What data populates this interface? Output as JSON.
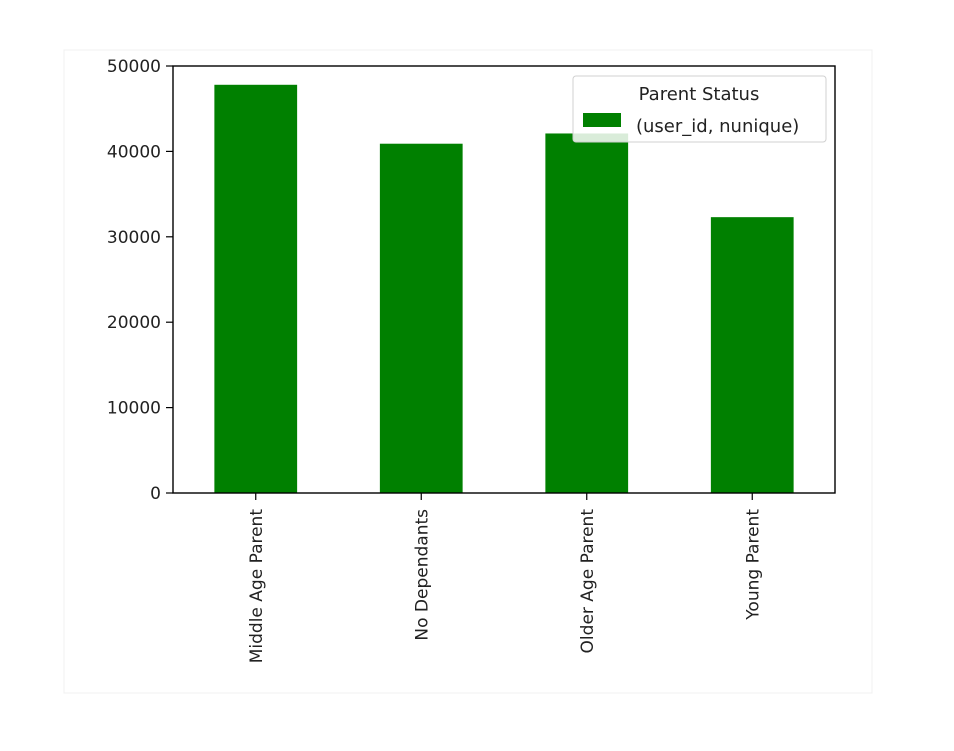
{
  "chart_data": {
    "type": "bar",
    "categories": [
      "Middle Age Parent",
      "No Dependants",
      "Older Age Parent",
      "Young Parent"
    ],
    "series": [
      {
        "name": "(user_id, nunique)",
        "values": [
          47800,
          40900,
          42100,
          32300
        ]
      }
    ],
    "title": "",
    "xlabel": "",
    "ylabel": "",
    "ylim": [
      0,
      50000
    ],
    "yticks": [
      0,
      10000,
      20000,
      30000,
      40000,
      50000
    ],
    "legend": {
      "title": "Parent Status",
      "position": "top-right"
    },
    "grid": false,
    "colors": {
      "bar": "#008000",
      "axes": "#000000",
      "figure_background": "#ffffff",
      "axes_background": "#ffffff"
    }
  }
}
